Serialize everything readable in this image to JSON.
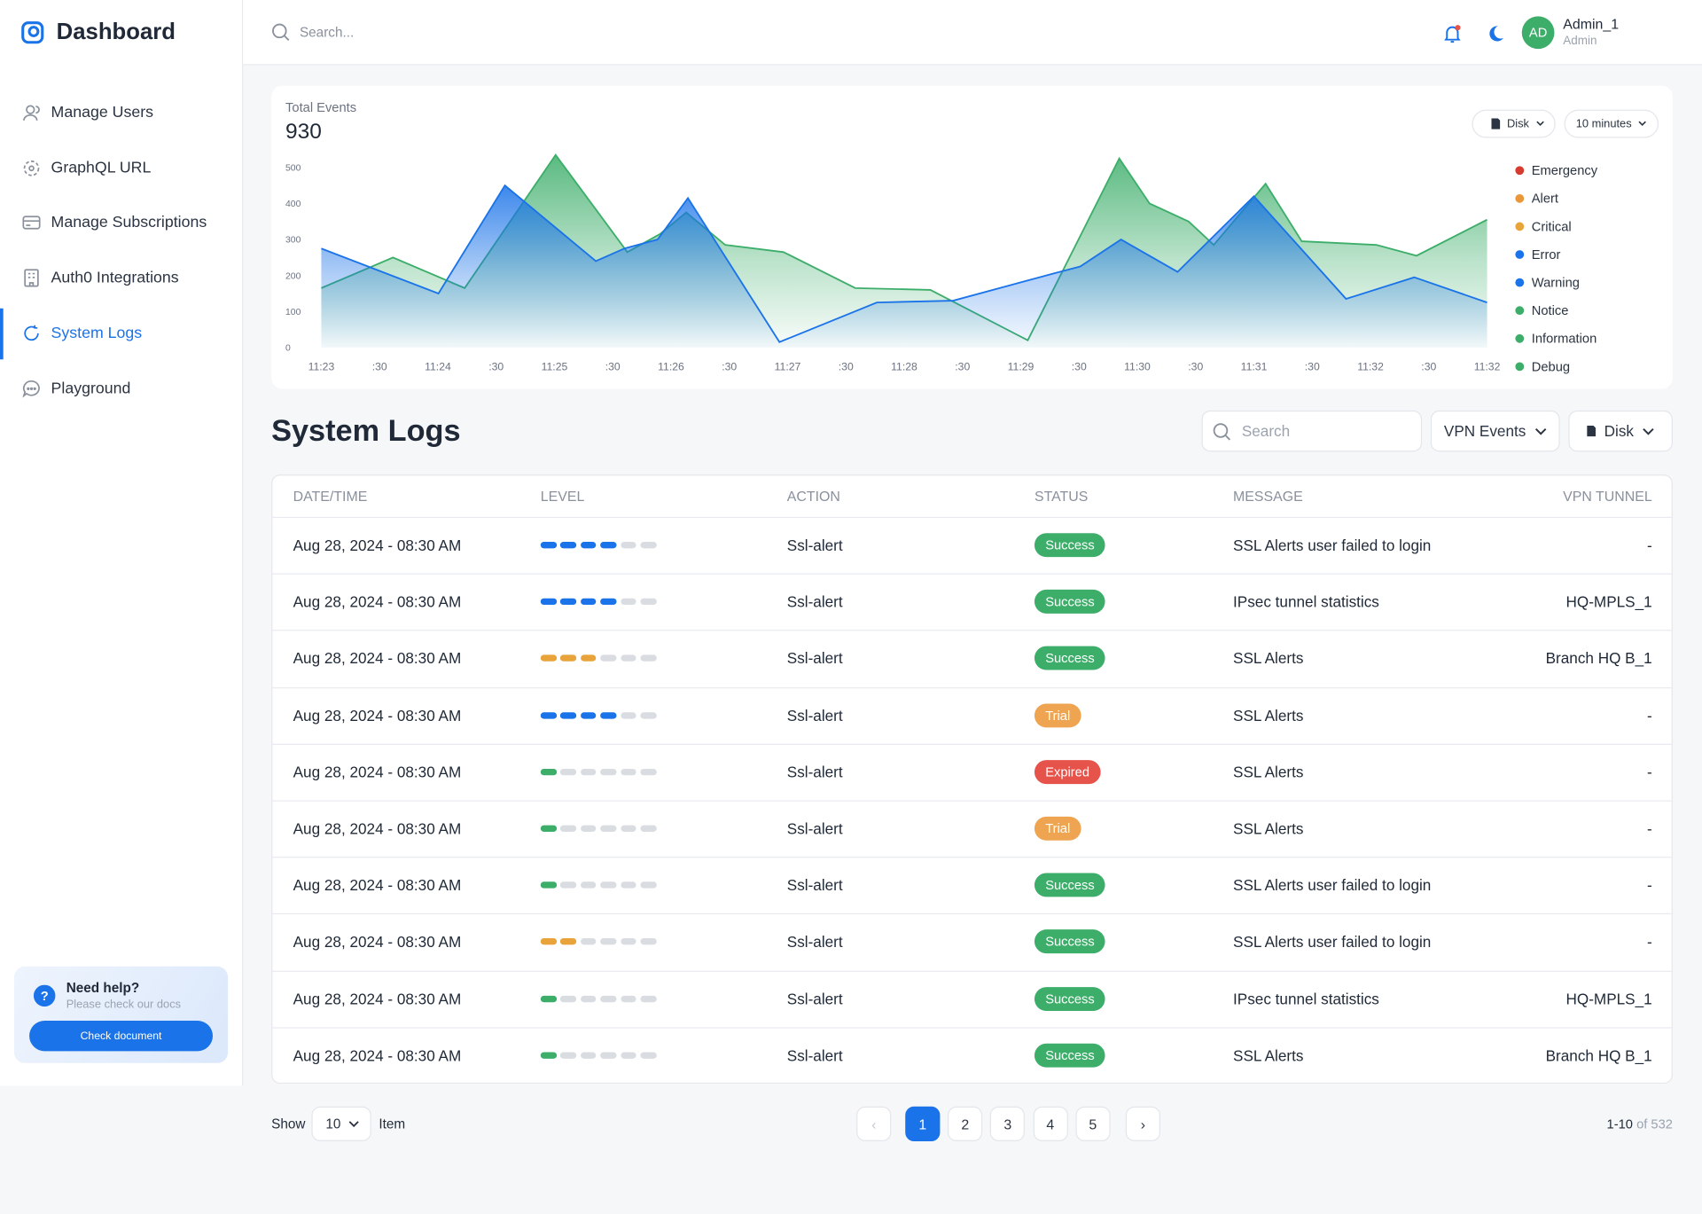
{
  "sidebar": {
    "brand": "Dashboard",
    "nav": [
      "Manage Users",
      "GraphQL URL",
      "Manage Subscriptions",
      "Auth0 Integrations",
      "System Logs",
      "Playground"
    ],
    "active": 4,
    "help": {
      "title": "Need help?",
      "subtitle": "Please check our docs",
      "button": "Check document"
    }
  },
  "header": {
    "search_placeholder": "Search...",
    "user": {
      "initials": "AD",
      "name": "Admin_1",
      "role": "Admin"
    }
  },
  "chart_data": {
    "type": "area",
    "label": "Total Events",
    "total": 930,
    "filters": [
      "Disk",
      "10 minutes"
    ],
    "xlim": [
      0,
      20
    ],
    "ylim": [
      0,
      540
    ],
    "yticks": [
      0,
      100,
      200,
      300,
      400,
      500
    ],
    "xticks": [
      {
        "value": 0,
        "label": "11:23"
      },
      {
        "value": 1,
        "label": ":30"
      },
      {
        "value": 2,
        "label": "11:24"
      },
      {
        "value": 3,
        "label": ":30"
      },
      {
        "value": 4,
        "label": "11:25"
      },
      {
        "value": 5,
        "label": ":30"
      },
      {
        "value": 6,
        "label": "11:26"
      },
      {
        "value": 7,
        "label": ":30"
      },
      {
        "value": 8,
        "label": "11:27"
      },
      {
        "value": 9,
        "label": ":30"
      },
      {
        "value": 10,
        "label": "11:28"
      },
      {
        "value": 11,
        "label": ":30"
      },
      {
        "value": 12,
        "label": "11:29"
      },
      {
        "value": 13,
        "label": ":30"
      },
      {
        "value": 14,
        "label": "11:30"
      },
      {
        "value": 15,
        "label": ":30"
      },
      {
        "value": 16,
        "label": "11:31"
      },
      {
        "value": 17,
        "label": ":30"
      },
      {
        "value": 18,
        "label": "11:32"
      },
      {
        "value": 19,
        "label": ":30"
      },
      {
        "value": 20,
        "label": "11:32"
      }
    ],
    "series": [
      {
        "color": "#3dae6a",
        "x": [
          0,
          1.23,
          2.46,
          4.02,
          5.25,
          5.81,
          6.26,
          6.93,
          7.93,
          9.16,
          10.45,
          12.12,
          13.69,
          14.21,
          14.88,
          15.31,
          16.2,
          16.82,
          18.1,
          18.79,
          20
        ],
        "values": [
          165,
          250,
          165,
          535,
          265,
          315,
          375,
          285,
          265,
          165,
          160,
          20,
          525,
          400,
          350,
          285,
          455,
          295,
          285,
          255,
          355
        ]
      },
      {
        "color": "#1a73e8",
        "x": [
          0,
          2.01,
          3.15,
          4.71,
          5.2,
          5.77,
          6.29,
          7.86,
          9.53,
          10.84,
          12.55,
          13.02,
          13.72,
          14.69,
          16.0,
          17.58,
          18.75,
          20
        ],
        "values": [
          275,
          150,
          450,
          240,
          275,
          300,
          415,
          15,
          125,
          130,
          205,
          225,
          300,
          210,
          420,
          135,
          195,
          125
        ]
      }
    ],
    "legend": [
      {
        "name": "Emergency",
        "color": "#d63b30"
      },
      {
        "name": "Alert",
        "color": "#e8973a"
      },
      {
        "name": "Critical",
        "color": "#e8a43a"
      },
      {
        "name": "Error",
        "color": "#1a73e8"
      },
      {
        "name": "Warning",
        "color": "#1a73e8"
      },
      {
        "name": "Notice",
        "color": "#3dae6a"
      },
      {
        "name": "Information",
        "color": "#3dae6a"
      },
      {
        "name": "Debug",
        "color": "#3dae6a"
      }
    ]
  },
  "logs": {
    "title": "System Logs",
    "search_placeholder": "Search",
    "filters": [
      "VPN Events",
      "Disk"
    ],
    "columns": [
      "DATE/TIME",
      "LEVEL",
      "ACTION",
      "STATUS",
      "MESSAGE",
      "VPN TUNNEL"
    ],
    "level_max": 6,
    "status_colors": {
      "Success": "#3dae6a",
      "Trial": "#eea450",
      "Expired": "#e5534b"
    },
    "rows": [
      {
        "date": "Aug 28, 2024 - 08:30 AM",
        "level": 4,
        "level_color": "#1a73e8",
        "action": "Ssl-alert",
        "status": "Success",
        "message": "SSL Alerts user failed to login",
        "tunnel": "-"
      },
      {
        "date": "Aug 28, 2024 - 08:30 AM",
        "level": 4,
        "level_color": "#1a73e8",
        "action": "Ssl-alert",
        "status": "Success",
        "message": "IPsec tunnel statistics",
        "tunnel": "HQ-MPLS_1"
      },
      {
        "date": "Aug 28, 2024 - 08:30 AM",
        "level": 3,
        "level_color": "#e8a43a",
        "action": "Ssl-alert",
        "status": "Success",
        "message": "SSL Alerts",
        "tunnel": "Branch HQ B_1"
      },
      {
        "date": "Aug 28, 2024 - 08:30 AM",
        "level": 4,
        "level_color": "#1a73e8",
        "action": "Ssl-alert",
        "status": "Trial",
        "message": "SSL Alerts",
        "tunnel": "-"
      },
      {
        "date": "Aug 28, 2024 - 08:30 AM",
        "level": 1,
        "level_color": "#3dae6a",
        "action": "Ssl-alert",
        "status": "Expired",
        "message": "SSL Alerts",
        "tunnel": "-"
      },
      {
        "date": "Aug 28, 2024 - 08:30 AM",
        "level": 1,
        "level_color": "#3dae6a",
        "action": "Ssl-alert",
        "status": "Trial",
        "message": "SSL Alerts",
        "tunnel": "-"
      },
      {
        "date": "Aug 28, 2024 - 08:30 AM",
        "level": 1,
        "level_color": "#3dae6a",
        "action": "Ssl-alert",
        "status": "Success",
        "message": "SSL Alerts user failed to login",
        "tunnel": "-"
      },
      {
        "date": "Aug 28, 2024 - 08:30 AM",
        "level": 2,
        "level_color": "#e8a43a",
        "action": "Ssl-alert",
        "status": "Success",
        "message": "SSL Alerts user failed to login",
        "tunnel": "-"
      },
      {
        "date": "Aug 28, 2024 - 08:30 AM",
        "level": 1,
        "level_color": "#3dae6a",
        "action": "Ssl-alert",
        "status": "Success",
        "message": "IPsec tunnel statistics",
        "tunnel": "HQ-MPLS_1"
      },
      {
        "date": "Aug 28, 2024 - 08:30 AM",
        "level": 1,
        "level_color": "#3dae6a",
        "action": "Ssl-alert",
        "status": "Success",
        "message": "SSL Alerts",
        "tunnel": "Branch HQ B_1"
      }
    ]
  },
  "pagination": {
    "show": "Show",
    "page_size": 10,
    "item": "Item",
    "pages": [
      1,
      2,
      3,
      4,
      5
    ],
    "current": 1,
    "range": "1-10",
    "of": "of",
    "total": 532
  }
}
